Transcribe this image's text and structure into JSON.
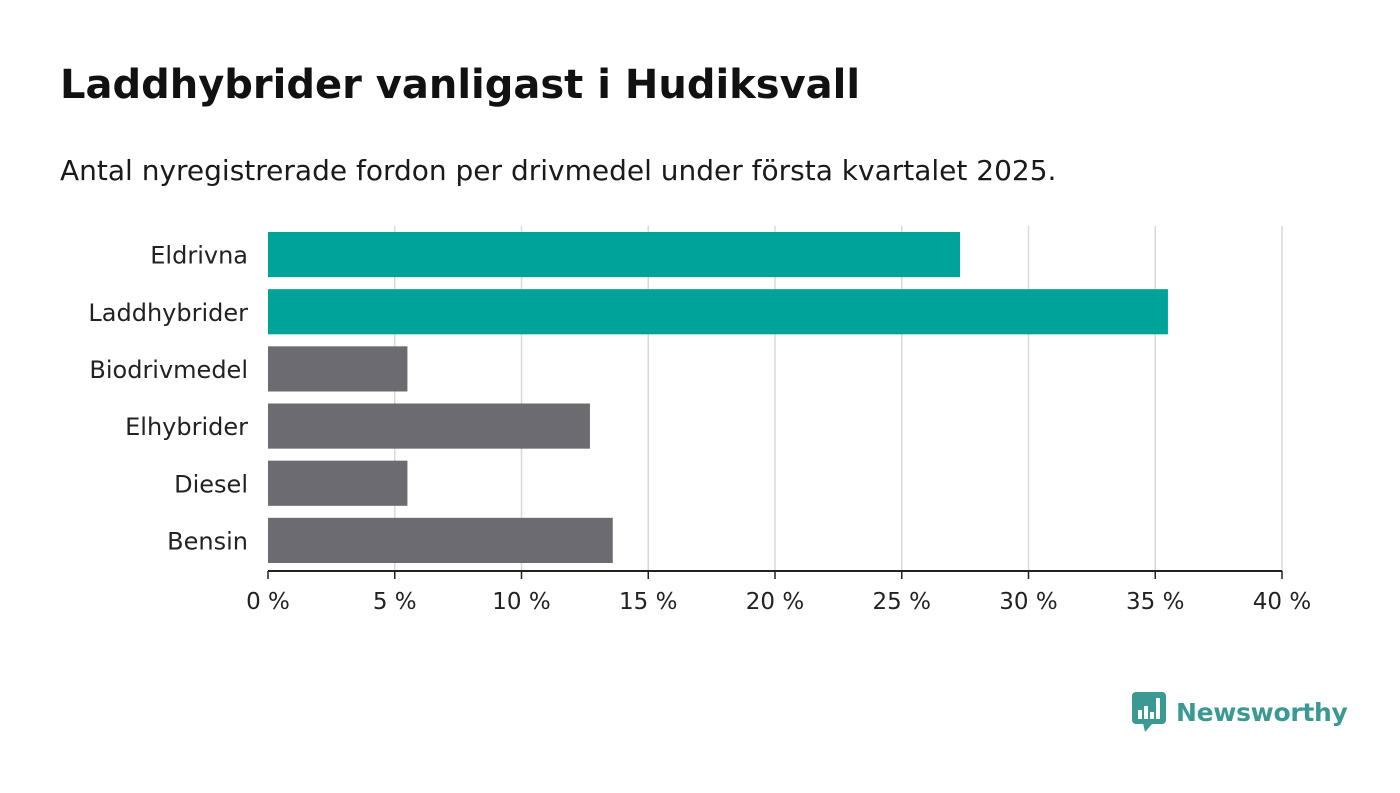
{
  "title": "Laddhybrider vanligast i Hudiksvall",
  "subtitle": "Antal nyregistrerade fordon per drivmedel under första kvartalet 2025.",
  "brand": {
    "name": "Newsworthy",
    "icon": "bar-chart-speech-bubble-icon"
  },
  "colors": {
    "highlight": "#00a398",
    "default": "#6c6b72",
    "grid": "#d9d9d9",
    "axis": "#222222",
    "brand": "#3a9a93"
  },
  "chart_data": {
    "type": "bar",
    "orientation": "horizontal",
    "categories": [
      "Eldrivna",
      "Laddhybrider",
      "Biodrivmedel",
      "Elhybrider",
      "Diesel",
      "Bensin"
    ],
    "values": [
      27.3,
      35.5,
      5.5,
      12.7,
      5.5,
      13.6
    ],
    "highlighted": [
      "Eldrivna",
      "Laddhybrider"
    ],
    "xlim": [
      0,
      40
    ],
    "xticks": [
      0,
      5,
      10,
      15,
      20,
      25,
      30,
      35,
      40
    ],
    "xtick_labels": [
      "0 %",
      "5 %",
      "10 %",
      "15 %",
      "20 %",
      "25 %",
      "30 %",
      "35 %",
      "40 %"
    ],
    "grid": true,
    "xlabel": "",
    "ylabel": ""
  }
}
